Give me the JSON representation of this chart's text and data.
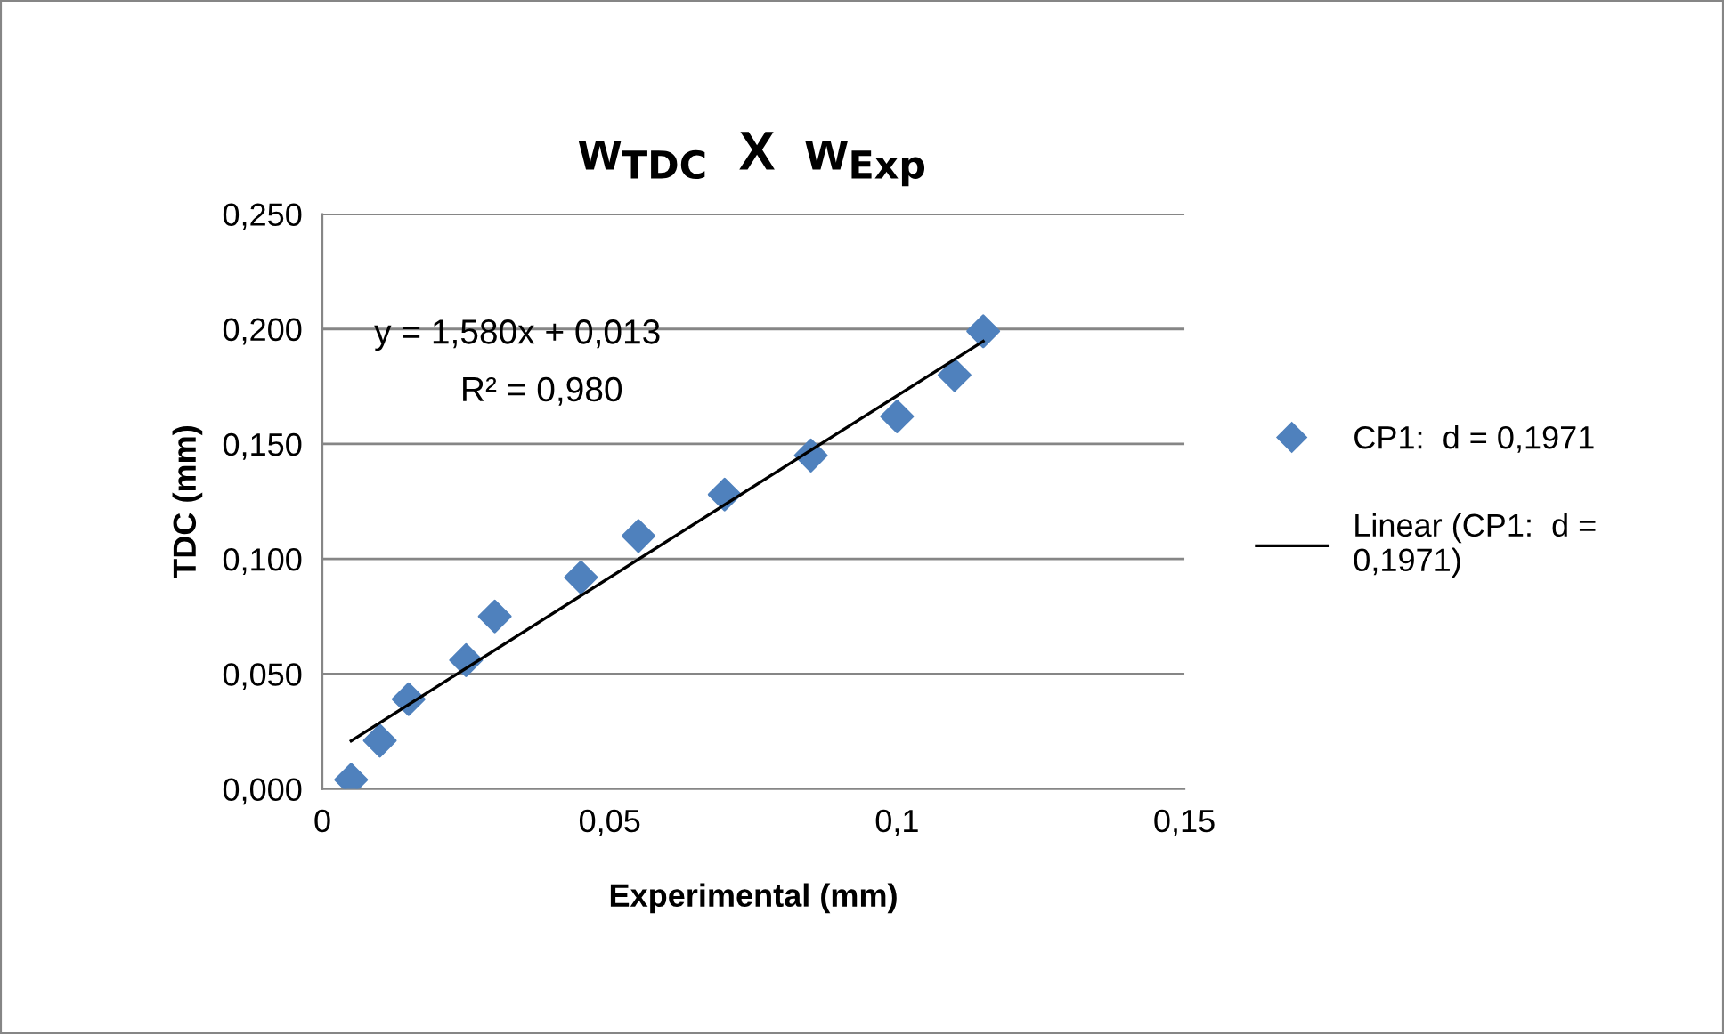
{
  "chart_data": {
    "type": "scatter",
    "title": "w$_{TDC}$  X  w$_{Exp}$",
    "xlabel": "Experimental (mm)",
    "ylabel": "TDC (mm)",
    "series": [
      {
        "name": "CP1:  d = 0,1971",
        "color": "#4f81bd",
        "marker": "diamond",
        "x": [
          0.005,
          0.01,
          0.015,
          0.025,
          0.03,
          0.045,
          0.055,
          0.07,
          0.085,
          0.1,
          0.11,
          0.115
        ],
        "values": [
          0.004,
          0.021,
          0.039,
          0.056,
          0.075,
          0.092,
          0.11,
          0.128,
          0.145,
          0.162,
          0.18,
          0.199
        ]
      },
      {
        "name": "Linear (CP1:  d = 0,1971)",
        "type": "line",
        "color": "#000000",
        "marker": "none",
        "line_style": "solid",
        "x": [
          0.005,
          0.115
        ],
        "values": [
          0.0209,
          0.1947
        ]
      }
    ],
    "annotations": [
      "y = 1,580x + 0,013",
      "R² = 0,980"
    ],
    "xlim": [
      0,
      0.15
    ],
    "ylim": [
      0,
      0.25
    ],
    "xticks": [
      {
        "value": 0,
        "label": "0"
      },
      {
        "value": 0.05,
        "label": "0,05"
      },
      {
        "value": 0.1,
        "label": "0,1"
      },
      {
        "value": 0.15,
        "label": "0,15"
      }
    ],
    "yticks": [
      {
        "value": 0,
        "label": "0,000"
      },
      {
        "value": 0.05,
        "label": "0,050"
      },
      {
        "value": 0.1,
        "label": "0,100"
      },
      {
        "value": 0.15,
        "label": "0,150"
      },
      {
        "value": 0.2,
        "label": "0,200"
      },
      {
        "value": 0.25,
        "label": "0,250"
      }
    ],
    "grid": "y",
    "legend": "right"
  }
}
